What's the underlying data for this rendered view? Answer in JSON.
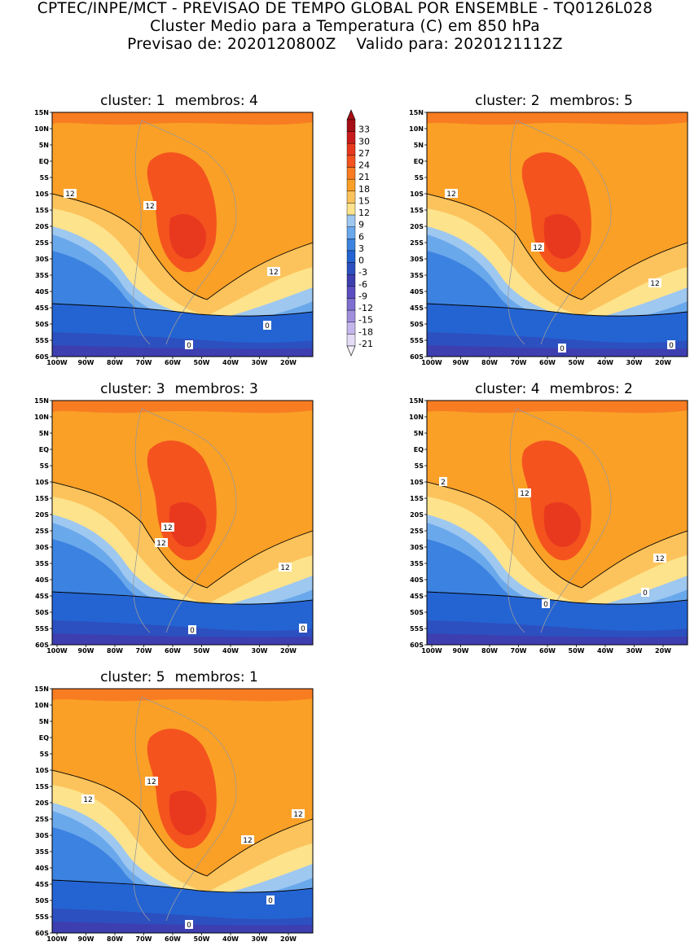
{
  "header": {
    "line1": "CPTEC/INPE/MCT - PREVISAO DE TEMPO GLOBAL POR ENSEMBLE - TQ0126L028",
    "line2": "Cluster Medio para a Temperatura (C) em 850 hPa",
    "line3_left": "Previsao de: 2020120800Z",
    "line3_right": "Valido para: 2020121112Z"
  },
  "axes": {
    "lat_ticks": [
      "15N",
      "10N",
      "5N",
      "EQ",
      "5S",
      "10S",
      "15S",
      "20S",
      "25S",
      "30S",
      "35S",
      "40S",
      "45S",
      "50S",
      "55S",
      "60S"
    ],
    "lon_ticks": [
      "100W",
      "90W",
      "80W",
      "70W",
      "60W",
      "50W",
      "40W",
      "30W",
      "20W"
    ]
  },
  "colorbar": {
    "levels": [
      "33",
      "30",
      "27",
      "24",
      "21",
      "18",
      "15",
      "12",
      "9",
      "6",
      "3",
      "0",
      "-3",
      "-6",
      "-9",
      "-12",
      "-15",
      "-18",
      "-21"
    ],
    "colors": [
      "#a50f15",
      "#c81c1c",
      "#e8391f",
      "#f4531e",
      "#f87c22",
      "#faa026",
      "#fcc35c",
      "#fde38c",
      "#9ec8f0",
      "#6aa8ec",
      "#3c82e0",
      "#2464d2",
      "#2c50c0",
      "#3d3fb0",
      "#5a4ec0",
      "#7e6fd0",
      "#a18fdc",
      "#c4b6ea",
      "#e4dcf6"
    ]
  },
  "clusters": [
    {
      "title": "cluster:",
      "number": "1",
      "members_label": "membros:",
      "members": "4",
      "contour_labels": [
        "12",
        "12",
        "12",
        "0",
        "0"
      ]
    },
    {
      "title": "cluster:",
      "number": "2",
      "members_label": "membros:",
      "members": "5",
      "contour_labels": [
        "12",
        "12",
        "12",
        "0",
        "0"
      ]
    },
    {
      "title": "cluster:",
      "number": "3",
      "members_label": "membros:",
      "members": "3",
      "contour_labels": [
        "12",
        "12",
        "12",
        "0",
        "0"
      ]
    },
    {
      "title": "cluster:",
      "number": "4",
      "members_label": "membros:",
      "members": "2",
      "contour_labels": [
        "2",
        "12",
        "12",
        "0",
        "0"
      ]
    },
    {
      "title": "cluster:",
      "number": "5",
      "members_label": "membros:",
      "members": "1",
      "contour_labels": [
        "12",
        "12",
        "12",
        "12",
        "0",
        "0"
      ]
    }
  ]
}
